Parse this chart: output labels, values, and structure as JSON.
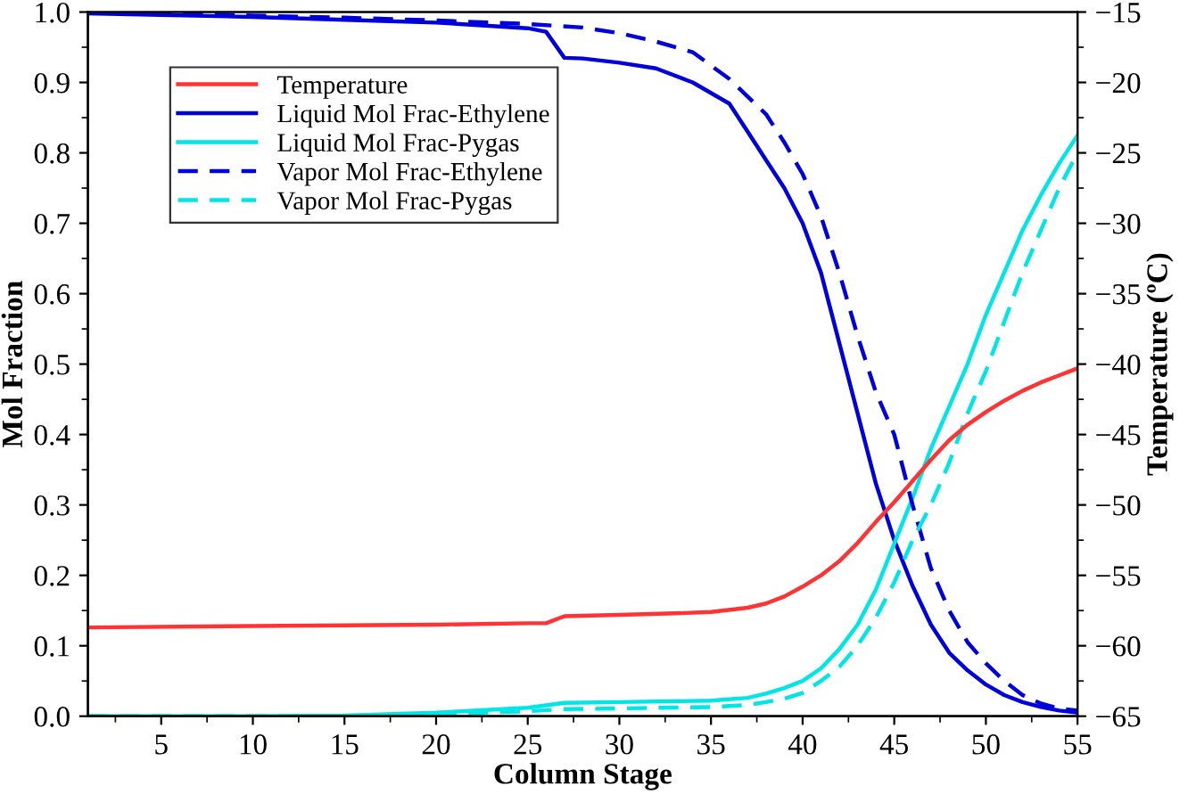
{
  "chart_data": {
    "type": "line",
    "xlabel": "Column Stage",
    "ylabel": "Mol Fraction",
    "y2label": "Temperature (ºC)",
    "xlim": [
      1,
      55
    ],
    "xticks": [
      5,
      10,
      15,
      20,
      25,
      30,
      35,
      40,
      45,
      50,
      55
    ],
    "ylim": [
      0,
      1
    ],
    "yticks": [
      {
        "value": 0,
        "label": "0.0"
      },
      {
        "value": 0.1,
        "label": "0.1"
      },
      {
        "value": 0.2,
        "label": "0.2"
      },
      {
        "value": 0.3,
        "label": "0.3"
      },
      {
        "value": 0.4,
        "label": "0.4"
      },
      {
        "value": 0.5,
        "label": "0.5"
      },
      {
        "value": 0.6,
        "label": "0.6"
      },
      {
        "value": 0.7,
        "label": "0.7"
      },
      {
        "value": 0.8,
        "label": "0.8"
      },
      {
        "value": 0.9,
        "label": "0.9"
      },
      {
        "value": 1,
        "label": "1.0"
      }
    ],
    "y2lim": [
      -65,
      -15
    ],
    "y2ticks": [
      {
        "value": -65,
        "label": "−65"
      },
      {
        "value": -60,
        "label": "−60"
      },
      {
        "value": -55,
        "label": "−55"
      },
      {
        "value": -50,
        "label": "−50"
      },
      {
        "value": -45,
        "label": "−45"
      },
      {
        "value": -40,
        "label": "−40"
      },
      {
        "value": -35,
        "label": "−35"
      },
      {
        "value": -30,
        "label": "−30"
      },
      {
        "value": -25,
        "label": "−25"
      },
      {
        "value": -20,
        "label": "−20"
      },
      {
        "value": -15,
        "label": "−15"
      }
    ],
    "legend": "top left",
    "grid": false,
    "marker": "none",
    "series": [
      {
        "name": "Temperature",
        "color": "#ff3333",
        "axis": "y2",
        "line_style": "solid",
        "x": [
          1,
          10,
          20,
          25,
          26,
          27,
          30,
          33,
          35,
          37,
          38,
          39,
          40,
          41,
          42,
          43,
          44,
          45,
          46,
          47,
          48,
          49,
          50,
          51,
          52,
          53,
          54,
          55
        ],
        "values": [
          -58.7,
          -58.6,
          -58.5,
          -58.4,
          -58.4,
          -57.9,
          -57.8,
          -57.7,
          -57.6,
          -57.3,
          -57.0,
          -56.5,
          -55.8,
          -55.0,
          -54.0,
          -52.7,
          -51.2,
          -49.8,
          -48.3,
          -46.8,
          -45.4,
          -44.3,
          -43.4,
          -42.6,
          -41.9,
          -41.3,
          -40.8,
          -40.3
        ]
      },
      {
        "name": "Liquid Mol Frac-Ethylene",
        "color": "#0000dd",
        "line_style": "solid",
        "x": [
          1,
          5,
          10,
          15,
          20,
          25,
          26,
          27,
          28,
          30,
          32,
          34,
          36,
          37,
          38,
          39,
          40,
          41,
          42,
          43,
          44,
          45,
          46,
          47,
          48,
          49,
          50,
          51,
          52,
          53,
          54,
          55
        ],
        "values": [
          0.998,
          0.996,
          0.993,
          0.989,
          0.985,
          0.977,
          0.972,
          0.935,
          0.934,
          0.928,
          0.92,
          0.9,
          0.87,
          0.83,
          0.79,
          0.75,
          0.7,
          0.63,
          0.53,
          0.43,
          0.33,
          0.25,
          0.185,
          0.13,
          0.09,
          0.065,
          0.045,
          0.03,
          0.02,
          0.013,
          0.008,
          0.005
        ]
      },
      {
        "name": "Liquid Mol Frac-Pygas",
        "color": "#00e5e5",
        "line_style": "solid",
        "x": [
          1,
          10,
          15,
          20,
          25,
          27,
          30,
          35,
          37,
          38,
          39,
          40,
          41,
          42,
          43,
          44,
          45,
          46,
          47,
          48,
          49,
          50,
          51,
          52,
          53,
          54,
          55
        ],
        "values": [
          0.0,
          0.0,
          0.001,
          0.005,
          0.012,
          0.019,
          0.02,
          0.022,
          0.026,
          0.032,
          0.04,
          0.05,
          0.068,
          0.095,
          0.13,
          0.18,
          0.245,
          0.31,
          0.38,
          0.44,
          0.5,
          0.57,
          0.63,
          0.69,
          0.74,
          0.785,
          0.825
        ]
      },
      {
        "name": "Vapor Mol Frac-Ethylene",
        "color": "#0000dd",
        "line_style": "dashed",
        "x": [
          1,
          5,
          10,
          15,
          20,
          25,
          28,
          30,
          32,
          34,
          36,
          37,
          38,
          39,
          40,
          41,
          42,
          43,
          44,
          45,
          46,
          47,
          48,
          49,
          50,
          51,
          52,
          53,
          54,
          55
        ],
        "values": [
          1.0,
          0.998,
          0.995,
          0.992,
          0.988,
          0.983,
          0.978,
          0.97,
          0.958,
          0.943,
          0.905,
          0.88,
          0.855,
          0.815,
          0.77,
          0.71,
          0.63,
          0.54,
          0.46,
          0.4,
          0.3,
          0.21,
          0.15,
          0.105,
          0.075,
          0.05,
          0.03,
          0.018,
          0.011,
          0.008
        ]
      },
      {
        "name": "Vapor Mol Frac-Pygas",
        "color": "#00e5e5",
        "line_style": "dashed",
        "x": [
          1,
          15,
          20,
          25,
          27,
          30,
          35,
          37,
          38,
          39,
          40,
          41,
          42,
          43,
          44,
          45,
          46,
          47,
          48,
          49,
          50,
          51,
          52,
          53,
          54,
          55
        ],
        "values": [
          0.0,
          0.0,
          0.003,
          0.007,
          0.01,
          0.011,
          0.013,
          0.016,
          0.02,
          0.025,
          0.033,
          0.05,
          0.07,
          0.1,
          0.14,
          0.19,
          0.25,
          0.3,
          0.36,
          0.43,
          0.49,
          0.56,
          0.63,
          0.69,
          0.75,
          0.8
        ]
      }
    ]
  }
}
